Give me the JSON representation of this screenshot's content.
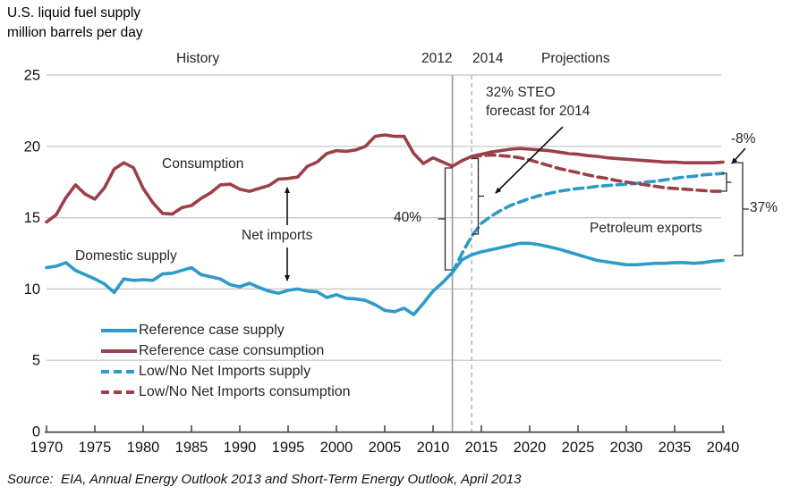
{
  "title": {
    "line1": "U.S. liquid fuel supply",
    "line2": "million barrels per day"
  },
  "period_labels": {
    "history": "History",
    "year_2012": "2012",
    "year_2014": "2014",
    "projections": "Projections"
  },
  "annotations": {
    "consumption": "Consumption",
    "net_imports": "Net imports",
    "domestic_supply": "Domestic supply",
    "steo": {
      "line1": "32% STEO",
      "line2": "forecast for 2014"
    },
    "pct_net_imports_2012": "40%",
    "pct_low_case_2040": "-8%",
    "pct_reference_2040": "37%",
    "petroleum_exports": "Petroleum exports"
  },
  "legend": [
    {
      "label": "Reference case supply",
      "color": "#2D9BC7",
      "dash": false
    },
    {
      "label": "Reference case consumption",
      "color": "#9B4049",
      "dash": false
    },
    {
      "label": "Low/No Net Imports supply",
      "color": "#2D9BC7",
      "dash": true
    },
    {
      "label": "Low/No Net Imports consumption",
      "color": "#9B4049",
      "dash": true
    }
  ],
  "source": "Source:  EIA, Annual Energy Outlook 2013 and Short-Term Energy Outlook, April 2013",
  "colors": {
    "supply_blue": "#2D9BC7",
    "consumption_red": "#9B4049",
    "gridline": "#c3c3c3",
    "axis": "#4a4a4a",
    "vline_2012": "#a3a3a3",
    "vline_2014": "#b5b5b5"
  },
  "chart_data": {
    "type": "line",
    "title": "U.S. liquid fuel supply",
    "ylabel": "million barrels per day",
    "xlim": [
      1970,
      2040
    ],
    "ylim": [
      0,
      25
    ],
    "x_ticks": [
      1970,
      1975,
      1980,
      1985,
      1990,
      1995,
      2000,
      2005,
      2010,
      2015,
      2020,
      2025,
      2030,
      2035,
      2040
    ],
    "y_ticks": [
      0,
      5,
      10,
      15,
      20,
      25
    ],
    "grid": "horizontal",
    "vlines": [
      {
        "x": 2012,
        "style": "solid"
      },
      {
        "x": 2014,
        "style": "dashed"
      }
    ],
    "legend_position": "lower-left",
    "series": [
      {
        "name": "Reference case supply",
        "color": "#2D9BC7",
        "style": "solid",
        "x_start": 1970,
        "x_step": 1,
        "values": [
          11.5,
          11.6,
          11.85,
          11.3,
          11.0,
          10.7,
          10.35,
          9.75,
          10.7,
          10.6,
          10.65,
          10.6,
          11.05,
          11.1,
          11.3,
          11.5,
          11.0,
          10.85,
          10.7,
          10.3,
          10.15,
          10.4,
          10.1,
          9.85,
          9.7,
          9.9,
          10.0,
          9.85,
          9.8,
          9.4,
          9.6,
          9.35,
          9.3,
          9.2,
          8.9,
          8.5,
          8.4,
          8.65,
          8.2,
          9.0,
          9.85,
          10.45,
          11.15,
          12.05,
          12.4,
          12.6,
          12.75,
          12.9,
          13.05,
          13.2,
          13.2,
          13.1,
          12.95,
          12.8,
          12.6,
          12.4,
          12.2,
          12.0,
          11.9,
          11.8,
          11.7,
          11.7,
          11.75,
          11.8,
          11.8,
          11.85,
          11.85,
          11.8,
          11.85,
          11.95,
          12.0
        ]
      },
      {
        "name": "Reference case consumption",
        "color": "#9B4049",
        "style": "solid",
        "x_start": 1970,
        "x_step": 1,
        "values": [
          14.7,
          15.2,
          16.4,
          17.3,
          16.65,
          16.3,
          17.1,
          18.4,
          18.85,
          18.5,
          17.05,
          16.05,
          15.3,
          15.25,
          15.7,
          15.85,
          16.35,
          16.75,
          17.3,
          17.35,
          17.0,
          16.85,
          17.05,
          17.25,
          17.7,
          17.75,
          17.85,
          18.6,
          18.9,
          19.5,
          19.7,
          19.65,
          19.75,
          20.0,
          20.7,
          20.8,
          20.7,
          20.7,
          19.5,
          18.8,
          19.2,
          18.9,
          18.6,
          19.0,
          19.3,
          19.45,
          19.6,
          19.7,
          19.8,
          19.85,
          19.8,
          19.75,
          19.7,
          19.6,
          19.5,
          19.45,
          19.35,
          19.3,
          19.2,
          19.15,
          19.1,
          19.05,
          19.0,
          18.95,
          18.9,
          18.9,
          18.85,
          18.85,
          18.85,
          18.85,
          18.9
        ]
      },
      {
        "name": "Low/No Net Imports supply",
        "color": "#2D9BC7",
        "style": "dashed",
        "x_start": 2012,
        "x_step": 1,
        "values": [
          11.15,
          12.5,
          13.7,
          14.6,
          15.1,
          15.5,
          15.85,
          16.1,
          16.35,
          16.55,
          16.7,
          16.85,
          16.95,
          17.05,
          17.1,
          17.2,
          17.25,
          17.3,
          17.35,
          17.4,
          17.5,
          17.55,
          17.65,
          17.75,
          17.85,
          17.9,
          18.0,
          18.05,
          18.1
        ]
      },
      {
        "name": "Low/No Net Imports consumption",
        "color": "#9B4049",
        "style": "dashed",
        "x_start": 2014,
        "x_step": 1,
        "values": [
          19.25,
          19.35,
          19.4,
          19.35,
          19.3,
          19.2,
          19.05,
          18.85,
          18.65,
          18.45,
          18.3,
          18.15,
          18.0,
          17.85,
          17.75,
          17.6,
          17.5,
          17.4,
          17.3,
          17.2,
          17.1,
          17.05,
          17.0,
          16.95,
          16.9,
          16.85,
          16.85
        ]
      }
    ]
  }
}
